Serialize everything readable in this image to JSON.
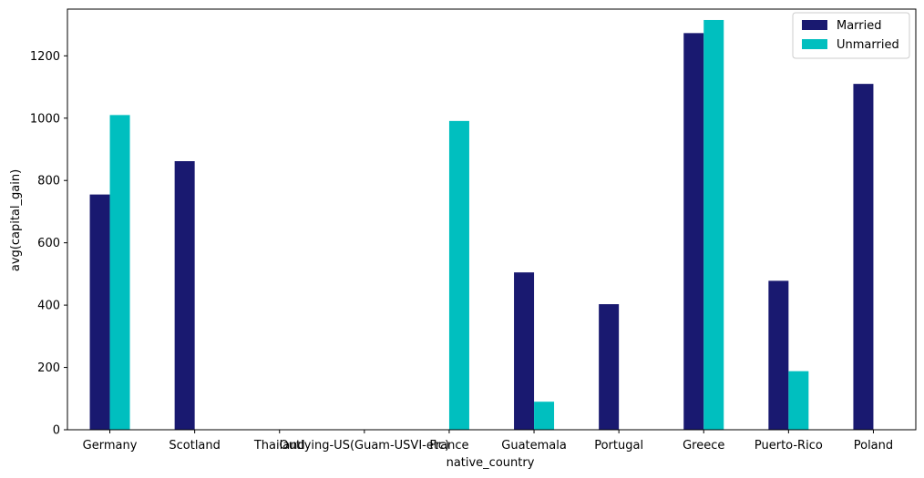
{
  "chart_data": {
    "type": "bar",
    "title": "",
    "xlabel": "native_country",
    "ylabel": "avg(capital_gain)",
    "ylim": [
      0,
      1350
    ],
    "yticks": [
      0,
      200,
      400,
      600,
      800,
      1000,
      1200
    ],
    "grid": false,
    "legend_position": "top-right",
    "categories": [
      "Germany",
      "Scotland",
      "Thailand",
      "Outlying-US(Guam-USVI-etc)",
      "France",
      "Guatemala",
      "Portugal",
      "Greece",
      "Puerto-Rico",
      "Poland"
    ],
    "series": [
      {
        "name": "Married",
        "color": "#191970",
        "values": [
          755,
          862,
          0,
          0,
          0,
          505,
          403,
          1273,
          478,
          1110
        ]
      },
      {
        "name": "Unmarried",
        "color": "#00bfbf",
        "values": [
          1010,
          0,
          0,
          0,
          991,
          90,
          0,
          1315,
          188,
          0
        ]
      }
    ]
  }
}
